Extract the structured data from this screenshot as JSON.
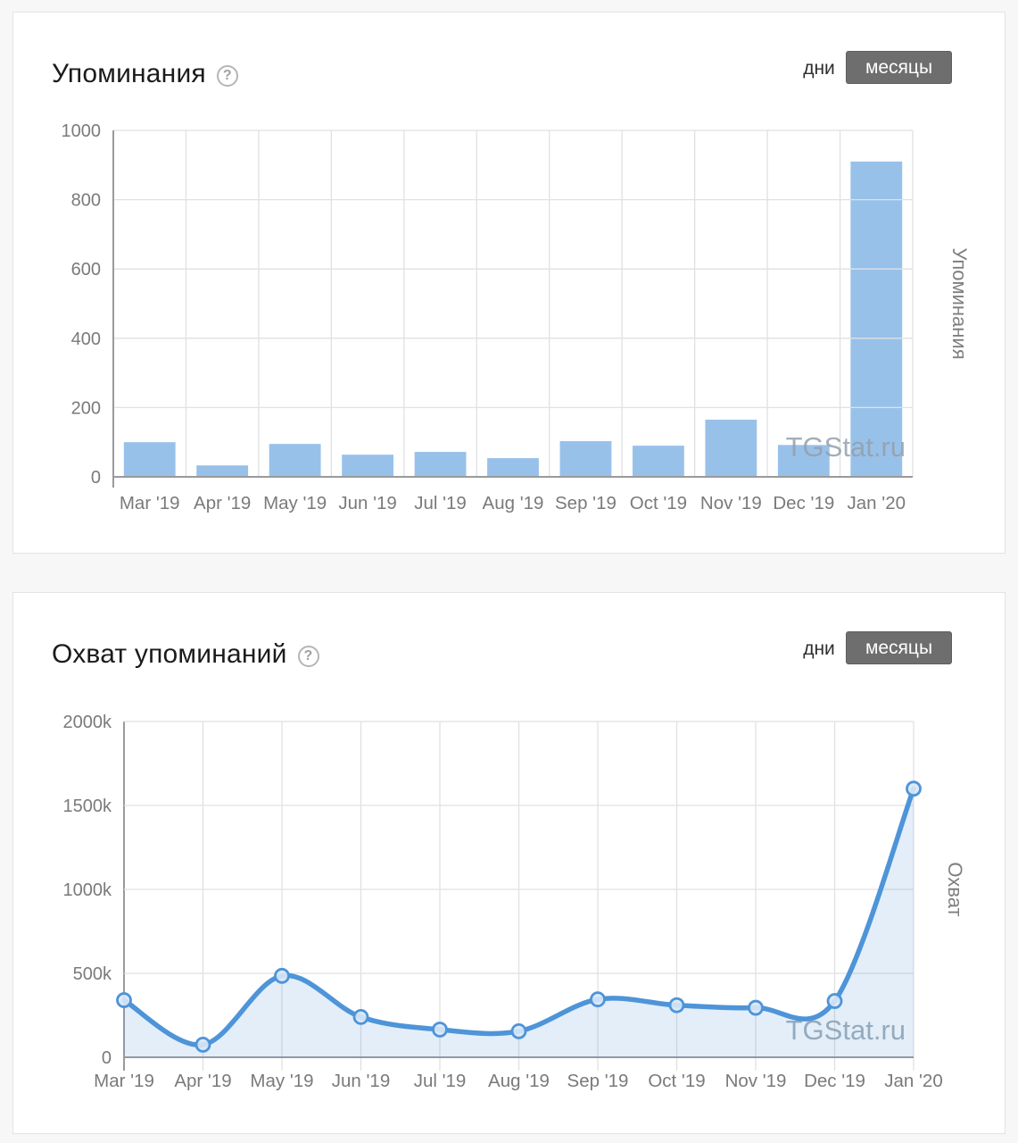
{
  "brand": {
    "watermark": "TGStat.ru",
    "accent_blue": "#8FBCE8",
    "line_blue": "#4E94D8",
    "toggle_active_bg": "#6E6E6E"
  },
  "chart_data": [
    {
      "type": "bar",
      "title": "Упоминания",
      "help_glyph": "?",
      "period_toggle": {
        "days": "дни",
        "months": "месяцы",
        "active": "месяцы"
      },
      "categories": [
        "Mar '19",
        "Apr '19",
        "May '19",
        "Jun '19",
        "Jul '19",
        "Aug '19",
        "Sep '19",
        "Oct '19",
        "Nov '19",
        "Dec '19",
        "Jan '20"
      ],
      "values": [
        100,
        33,
        95,
        64,
        72,
        54,
        103,
        90,
        165,
        92,
        910
      ],
      "ylabel": "Упоминания",
      "xlabel": "",
      "ylim": [
        0,
        1000
      ],
      "yticks": [
        "0",
        "200",
        "400",
        "600",
        "800",
        "1000"
      ],
      "grid": "on",
      "bar_color": "#8FBCE8",
      "watermark": "TGStat.ru"
    },
    {
      "type": "area",
      "title": "Охват упоминаний",
      "help_glyph": "?",
      "period_toggle": {
        "days": "дни",
        "months": "месяцы",
        "active": "месяцы"
      },
      "categories": [
        "Mar '19",
        "Apr '19",
        "May '19",
        "Jun '19",
        "Jul '19",
        "Aug '19",
        "Sep '19",
        "Oct '19",
        "Nov '19",
        "Dec '19",
        "Jan '20"
      ],
      "values_thousands": [
        340,
        75,
        485,
        240,
        165,
        155,
        345,
        310,
        295,
        335,
        1600
      ],
      "ylabel": "Охват",
      "xlabel": "",
      "ylim": [
        0,
        2000
      ],
      "ylim_units": "k",
      "yticks": [
        "0",
        "500k",
        "1000k",
        "1500k",
        "2000k"
      ],
      "grid": "on",
      "line_color": "#4E94D8",
      "fill_color": "rgba(78,148,216,0.16)",
      "watermark": "TGStat.ru"
    }
  ]
}
